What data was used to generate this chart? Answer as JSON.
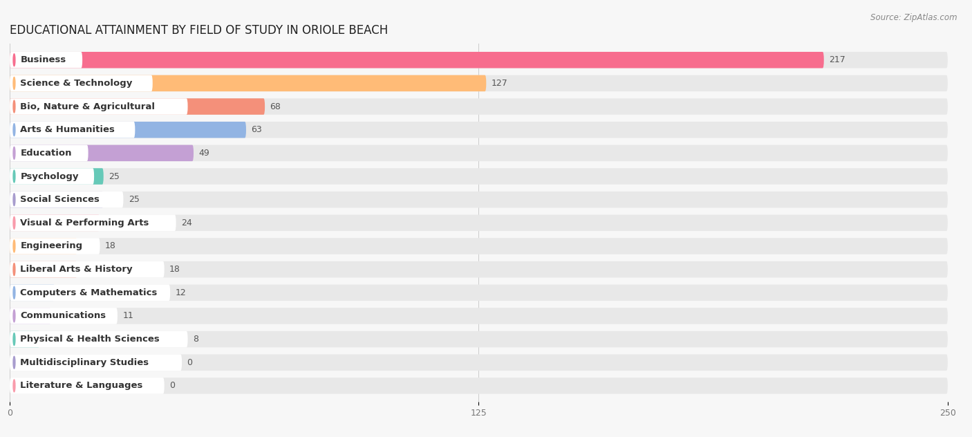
{
  "title": "EDUCATIONAL ATTAINMENT BY FIELD OF STUDY IN ORIOLE BEACH",
  "source": "Source: ZipAtlas.com",
  "categories": [
    "Business",
    "Science & Technology",
    "Bio, Nature & Agricultural",
    "Arts & Humanities",
    "Education",
    "Psychology",
    "Social Sciences",
    "Visual & Performing Arts",
    "Engineering",
    "Liberal Arts & History",
    "Computers & Mathematics",
    "Communications",
    "Physical & Health Sciences",
    "Multidisciplinary Studies",
    "Literature & Languages"
  ],
  "values": [
    217,
    127,
    68,
    63,
    49,
    25,
    25,
    24,
    18,
    18,
    12,
    11,
    8,
    0,
    0
  ],
  "colors": [
    "#F76D8E",
    "#FFBB77",
    "#F4907A",
    "#92B4E3",
    "#C4A0D4",
    "#66C9B8",
    "#A89CCE",
    "#F99BAB",
    "#FFBB77",
    "#F4907A",
    "#92B4E3",
    "#C4A0D4",
    "#66C9B8",
    "#A89CCE",
    "#F99BAB"
  ],
  "xlim": [
    0,
    250
  ],
  "xticks": [
    0,
    125,
    250
  ],
  "background_color": "#f7f7f7",
  "bar_bg_color": "#e8e8e8",
  "title_fontsize": 12,
  "label_fontsize": 9.5,
  "value_fontsize": 9,
  "bar_height": 0.7
}
